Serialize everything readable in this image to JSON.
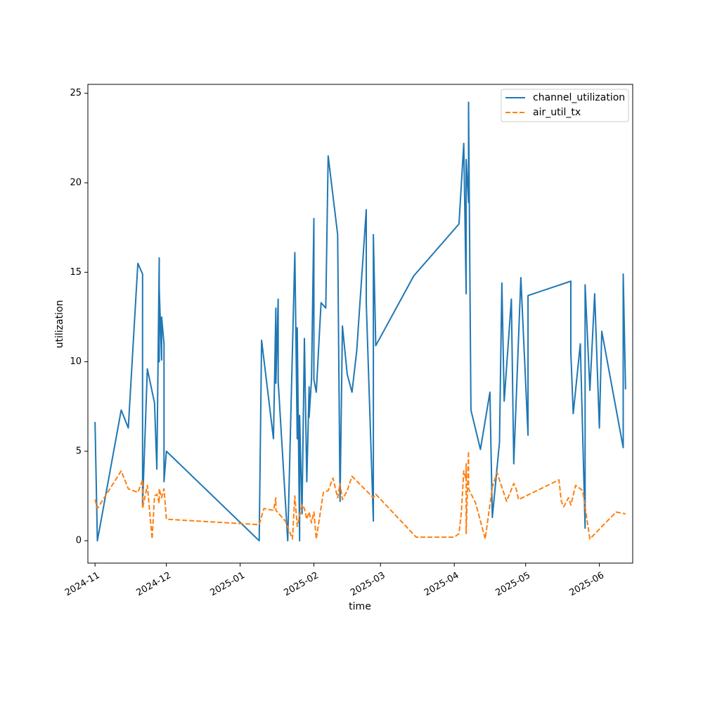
{
  "chart_data": {
    "type": "line",
    "title": "",
    "xlabel": "time",
    "ylabel": "utilization",
    "x_ticks": [
      "2024-11",
      "2024-12",
      "2025-01",
      "2025-02",
      "2025-03",
      "2025-04",
      "2025-05",
      "2025-06"
    ],
    "y_ticks": [
      "0",
      "5",
      "10",
      "15",
      "20",
      "25"
    ],
    "xlim": [
      "2024-10-29",
      "2025-06-15"
    ],
    "ylim": [
      -1.25,
      25.5
    ],
    "grid": false,
    "legend_position": "top-right",
    "series": [
      {
        "name": "channel_utilization",
        "color": "#1f77b4",
        "style": "solid",
        "points": [
          [
            "2024-11-01",
            6.6
          ],
          [
            "2024-11-02",
            0.0
          ],
          [
            "2024-11-12",
            7.3
          ],
          [
            "2024-11-15",
            6.3
          ],
          [
            "2024-11-19",
            15.5
          ],
          [
            "2024-11-21",
            14.9
          ],
          [
            "2024-11-21",
            2.0
          ],
          [
            "2024-11-23",
            9.6
          ],
          [
            "2024-11-26",
            7.7
          ],
          [
            "2024-11-27",
            4.0
          ],
          [
            "2024-11-28",
            15.8
          ],
          [
            "2024-11-28",
            10.0
          ],
          [
            "2024-11-28",
            14.1
          ],
          [
            "2024-11-29",
            10.1
          ],
          [
            "2024-11-29",
            12.5
          ],
          [
            "2024-11-30",
            11.0
          ],
          [
            "2024-11-30",
            3.3
          ],
          [
            "2024-12-01",
            5.0
          ],
          [
            "2025-01-09",
            0.0
          ],
          [
            "2025-01-10",
            11.2
          ],
          [
            "2025-01-15",
            5.7
          ],
          [
            "2025-01-16",
            13.0
          ],
          [
            "2025-01-16",
            8.8
          ],
          [
            "2025-01-17",
            13.5
          ],
          [
            "2025-01-17",
            8.9
          ],
          [
            "2025-01-21",
            0.0
          ],
          [
            "2025-01-24",
            16.1
          ],
          [
            "2025-01-25",
            5.7
          ],
          [
            "2025-01-25",
            11.9
          ],
          [
            "2025-01-26",
            0.0
          ],
          [
            "2025-01-26",
            7.0
          ],
          [
            "2025-01-27",
            1.5
          ],
          [
            "2025-01-28",
            11.3
          ],
          [
            "2025-01-29",
            3.3
          ],
          [
            "2025-01-30",
            8.6
          ],
          [
            "2025-01-30",
            6.9
          ],
          [
            "2025-01-31",
            9.0
          ],
          [
            "2025-02-01",
            18.0
          ],
          [
            "2025-02-01",
            9.0
          ],
          [
            "2025-02-02",
            8.3
          ],
          [
            "2025-02-04",
            13.3
          ],
          [
            "2025-02-06",
            13.0
          ],
          [
            "2025-02-07",
            21.5
          ],
          [
            "2025-02-11",
            17.1
          ],
          [
            "2025-02-12",
            2.2
          ],
          [
            "2025-02-13",
            12.0
          ],
          [
            "2025-02-15",
            9.3
          ],
          [
            "2025-02-17",
            8.3
          ],
          [
            "2025-02-19",
            10.6
          ],
          [
            "2025-02-23",
            18.5
          ],
          [
            "2025-02-23",
            13.3
          ],
          [
            "2025-02-26",
            1.1
          ],
          [
            "2025-02-26",
            17.1
          ],
          [
            "2025-02-27",
            10.9
          ],
          [
            "2025-03-15",
            14.8
          ],
          [
            "2025-04-03",
            17.7
          ],
          [
            "2025-04-05",
            22.2
          ],
          [
            "2025-04-06",
            13.8
          ],
          [
            "2025-04-06",
            21.3
          ],
          [
            "2025-04-07",
            18.9
          ],
          [
            "2025-04-07",
            24.5
          ],
          [
            "2025-04-08",
            7.3
          ],
          [
            "2025-04-12",
            5.1
          ],
          [
            "2025-04-16",
            8.3
          ],
          [
            "2025-04-17",
            1.3
          ],
          [
            "2025-04-20",
            5.5
          ],
          [
            "2025-04-21",
            14.4
          ],
          [
            "2025-04-22",
            7.8
          ],
          [
            "2025-04-25",
            13.5
          ],
          [
            "2025-04-26",
            4.3
          ],
          [
            "2025-04-29",
            14.7
          ],
          [
            "2025-05-02",
            5.9
          ],
          [
            "2025-05-02",
            13.7
          ],
          [
            "2025-05-20",
            14.5
          ],
          [
            "2025-05-20",
            10.5
          ],
          [
            "2025-05-21",
            7.1
          ],
          [
            "2025-05-24",
            11.0
          ],
          [
            "2025-05-26",
            0.7
          ],
          [
            "2025-05-26",
            14.3
          ],
          [
            "2025-05-28",
            8.4
          ],
          [
            "2025-05-30",
            13.8
          ],
          [
            "2025-06-01",
            6.3
          ],
          [
            "2025-06-02",
            11.7
          ],
          [
            "2025-06-11",
            5.2
          ],
          [
            "2025-06-11",
            14.9
          ],
          [
            "2025-06-12",
            8.5
          ]
        ]
      },
      {
        "name": "air_util_tx",
        "color": "#ff7f0e",
        "style": "dashed",
        "points": [
          [
            "2024-11-01",
            2.3
          ],
          [
            "2024-11-02",
            1.8
          ],
          [
            "2024-11-12",
            3.9
          ],
          [
            "2024-11-15",
            2.9
          ],
          [
            "2024-11-19",
            2.7
          ],
          [
            "2024-11-21",
            3.4
          ],
          [
            "2024-11-21",
            1.8
          ],
          [
            "2024-11-23",
            3.1
          ],
          [
            "2024-11-25",
            0.1
          ],
          [
            "2024-11-26",
            2.5
          ],
          [
            "2024-11-27",
            2.6
          ],
          [
            "2024-11-28",
            2.1
          ],
          [
            "2024-11-28",
            2.9
          ],
          [
            "2024-11-29",
            2.4
          ],
          [
            "2024-11-30",
            2.9
          ],
          [
            "2024-12-01",
            1.2
          ],
          [
            "2025-01-09",
            0.9
          ],
          [
            "2025-01-11",
            1.8
          ],
          [
            "2025-01-15",
            1.7
          ],
          [
            "2025-01-16",
            2.4
          ],
          [
            "2025-01-16",
            1.7
          ],
          [
            "2025-01-20",
            1.1
          ],
          [
            "2025-01-23",
            0.1
          ],
          [
            "2025-01-24",
            2.5
          ],
          [
            "2025-01-25",
            0.8
          ],
          [
            "2025-01-27",
            2.0
          ],
          [
            "2025-01-28",
            1.8
          ],
          [
            "2025-01-29",
            1.2
          ],
          [
            "2025-01-30",
            1.6
          ],
          [
            "2025-01-31",
            1.0
          ],
          [
            "2025-02-01",
            1.6
          ],
          [
            "2025-02-02",
            0.1
          ],
          [
            "2025-02-05",
            2.7
          ],
          [
            "2025-02-07",
            2.8
          ],
          [
            "2025-02-09",
            3.5
          ],
          [
            "2025-02-11",
            2.4
          ],
          [
            "2025-02-12",
            3.2
          ],
          [
            "2025-02-13",
            2.3
          ],
          [
            "2025-02-15",
            2.8
          ],
          [
            "2025-02-17",
            3.6
          ],
          [
            "2025-02-26",
            2.4
          ],
          [
            "2025-02-27",
            2.6
          ],
          [
            "2025-03-16",
            0.2
          ],
          [
            "2025-04-01",
            0.2
          ],
          [
            "2025-04-03",
            0.4
          ],
          [
            "2025-04-04",
            1.6
          ],
          [
            "2025-04-05",
            3.9
          ],
          [
            "2025-04-06",
            3.4
          ],
          [
            "2025-04-06",
            4.3
          ],
          [
            "2025-04-06",
            0.4
          ],
          [
            "2025-04-07",
            5.0
          ],
          [
            "2025-04-07",
            2.9
          ],
          [
            "2025-04-10",
            2.1
          ],
          [
            "2025-04-14",
            0.1
          ],
          [
            "2025-04-17",
            3.0
          ],
          [
            "2025-04-19",
            3.8
          ],
          [
            "2025-04-23",
            2.2
          ],
          [
            "2025-04-26",
            3.2
          ],
          [
            "2025-04-27",
            2.9
          ],
          [
            "2025-04-28",
            2.3
          ],
          [
            "2025-05-15",
            3.4
          ],
          [
            "2025-05-16",
            2.2
          ],
          [
            "2025-05-17",
            1.9
          ],
          [
            "2025-05-19",
            2.4
          ],
          [
            "2025-05-20",
            2.0
          ],
          [
            "2025-05-22",
            3.1
          ],
          [
            "2025-05-25",
            2.8
          ],
          [
            "2025-05-28",
            0.1
          ],
          [
            "2025-06-08",
            1.6
          ],
          [
            "2025-06-12",
            1.5
          ]
        ]
      }
    ]
  }
}
